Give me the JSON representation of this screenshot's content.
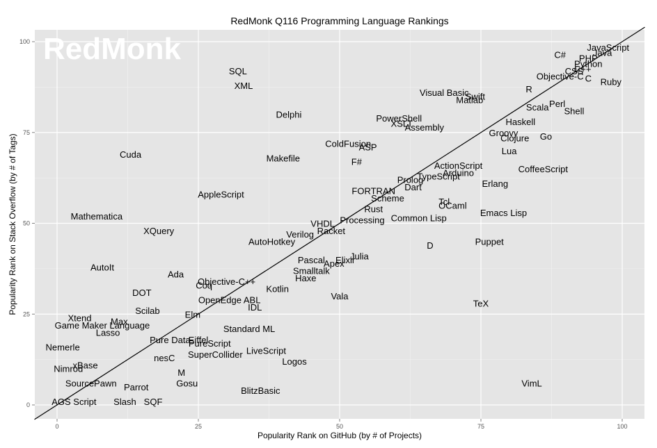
{
  "chart_data": {
    "type": "scatter",
    "title": "RedMonk Q116 Programming Language Rankings",
    "xlabel": "Popularity Rank on GitHub (by # of Projects)",
    "ylabel": "Popularity Rank on Stack Overflow (by # of Tags)",
    "xlim": [
      -4,
      104
    ],
    "ylim": [
      -4,
      105
    ],
    "xticks": [
      0,
      25,
      50,
      75,
      100
    ],
    "yticks": [
      0,
      25,
      50,
      75,
      100
    ],
    "grid": true,
    "legend": "none",
    "reference_line": "y = x",
    "watermark": "RedMonk",
    "points": [
      {
        "label": "JavaScript",
        "x": 97.5,
        "y": 98.5
      },
      {
        "label": "Java",
        "x": 96.5,
        "y": 97
      },
      {
        "label": "C#",
        "x": 89,
        "y": 96.5
      },
      {
        "label": "PHP",
        "x": 94,
        "y": 95.5
      },
      {
        "label": "Python",
        "x": 94,
        "y": 94
      },
      {
        "label": "C++",
        "x": 93,
        "y": 92.5
      },
      {
        "label": "CSS",
        "x": 91.5,
        "y": 92
      },
      {
        "label": "Objective-C",
        "x": 89,
        "y": 90.5
      },
      {
        "label": "C",
        "x": 94,
        "y": 90
      },
      {
        "label": "Ruby",
        "x": 98,
        "y": 89
      },
      {
        "label": "R",
        "x": 83.5,
        "y": 87
      },
      {
        "label": "Visual Basic",
        "x": 68.5,
        "y": 86
      },
      {
        "label": "Swift",
        "x": 74,
        "y": 85
      },
      {
        "label": "Matlab",
        "x": 73,
        "y": 84
      },
      {
        "label": "Perl",
        "x": 88.5,
        "y": 83
      },
      {
        "label": "Scala",
        "x": 85,
        "y": 82
      },
      {
        "label": "Shell",
        "x": 91.5,
        "y": 81
      },
      {
        "label": "SQL",
        "x": 32,
        "y": 92
      },
      {
        "label": "XML",
        "x": 33,
        "y": 88
      },
      {
        "label": "Delphi",
        "x": 41,
        "y": 80
      },
      {
        "label": "PowerShell",
        "x": 60.5,
        "y": 79
      },
      {
        "label": "XSLT",
        "x": 61,
        "y": 77.5
      },
      {
        "label": "Haskell",
        "x": 82,
        "y": 78
      },
      {
        "label": "Assembly",
        "x": 65,
        "y": 76.5
      },
      {
        "label": "Groovy",
        "x": 79,
        "y": 75
      },
      {
        "label": "Go",
        "x": 86.5,
        "y": 74
      },
      {
        "label": "Clojure",
        "x": 81,
        "y": 73.5
      },
      {
        "label": "ColdFusion",
        "x": 51.5,
        "y": 72
      },
      {
        "label": "ASP",
        "x": 55,
        "y": 71
      },
      {
        "label": "Lua",
        "x": 80,
        "y": 70
      },
      {
        "label": "Cuda",
        "x": 13,
        "y": 69
      },
      {
        "label": "Makefile",
        "x": 40,
        "y": 68
      },
      {
        "label": "F#",
        "x": 53,
        "y": 67
      },
      {
        "label": "ActionScript",
        "x": 71,
        "y": 66
      },
      {
        "label": "CoffeeScript",
        "x": 86,
        "y": 65
      },
      {
        "label": "Arduino",
        "x": 71,
        "y": 64
      },
      {
        "label": "TypeScript",
        "x": 67.5,
        "y": 63
      },
      {
        "label": "Prolog",
        "x": 62.5,
        "y": 62
      },
      {
        "label": "Erlang",
        "x": 77.5,
        "y": 61
      },
      {
        "label": "Dart",
        "x": 63,
        "y": 60
      },
      {
        "label": "FORTRAN",
        "x": 56,
        "y": 59
      },
      {
        "label": "AppleScript",
        "x": 29,
        "y": 58
      },
      {
        "label": "Scheme",
        "x": 58.5,
        "y": 57
      },
      {
        "label": "Tcl",
        "x": 68.5,
        "y": 56
      },
      {
        "label": "OCaml",
        "x": 70,
        "y": 55
      },
      {
        "label": "Rust",
        "x": 56,
        "y": 54
      },
      {
        "label": "Emacs Lisp",
        "x": 79,
        "y": 53
      },
      {
        "label": "Mathematica",
        "x": 7,
        "y": 52
      },
      {
        "label": "Common Lisp",
        "x": 64,
        "y": 51.5
      },
      {
        "label": "Processing",
        "x": 54,
        "y": 51
      },
      {
        "label": "VHDL",
        "x": 47,
        "y": 50
      },
      {
        "label": "XQuery",
        "x": 18,
        "y": 48
      },
      {
        "label": "Racket",
        "x": 48.5,
        "y": 48
      },
      {
        "label": "Verilog",
        "x": 43,
        "y": 47
      },
      {
        "label": "D",
        "x": 66,
        "y": 44
      },
      {
        "label": "Puppet",
        "x": 76.5,
        "y": 45
      },
      {
        "label": "AutoHotkey",
        "x": 38,
        "y": 45
      },
      {
        "label": "Julia",
        "x": 53.5,
        "y": 41
      },
      {
        "label": "Pascal",
        "x": 45,
        "y": 40
      },
      {
        "label": "Elixir",
        "x": 51,
        "y": 40
      },
      {
        "label": "Apex",
        "x": 49,
        "y": 39
      },
      {
        "label": "AutoIt",
        "x": 8,
        "y": 38
      },
      {
        "label": "Smalltalk",
        "x": 45,
        "y": 37
      },
      {
        "label": "Ada",
        "x": 21,
        "y": 36
      },
      {
        "label": "Haxe",
        "x": 44,
        "y": 35
      },
      {
        "label": "Objective-C++",
        "x": 30,
        "y": 34
      },
      {
        "label": "Coq",
        "x": 26,
        "y": 33
      },
      {
        "label": "Kotlin",
        "x": 39,
        "y": 32
      },
      {
        "label": "DOT",
        "x": 15,
        "y": 31
      },
      {
        "label": "Vala",
        "x": 50,
        "y": 30
      },
      {
        "label": "OpenEdge ABL",
        "x": 30.5,
        "y": 29
      },
      {
        "label": "TeX",
        "x": 75,
        "y": 28
      },
      {
        "label": "IDL",
        "x": 35,
        "y": 27
      },
      {
        "label": "Scilab",
        "x": 16,
        "y": 26
      },
      {
        "label": "Elm",
        "x": 24,
        "y": 25
      },
      {
        "label": "Xtend",
        "x": 4,
        "y": 24
      },
      {
        "label": "Max",
        "x": 11,
        "y": 23
      },
      {
        "label": "Game Maker Language",
        "x": 8,
        "y": 22
      },
      {
        "label": "Standard ML",
        "x": 34,
        "y": 21
      },
      {
        "label": "Lasso",
        "x": 9,
        "y": 20
      },
      {
        "label": "Pure Data",
        "x": 20,
        "y": 18
      },
      {
        "label": "Eiffel",
        "x": 25,
        "y": 18
      },
      {
        "label": "PureScript",
        "x": 27,
        "y": 17
      },
      {
        "label": "Nemerle",
        "x": 1,
        "y": 16
      },
      {
        "label": "LiveScript",
        "x": 37,
        "y": 15
      },
      {
        "label": "SuperCollider",
        "x": 28,
        "y": 14
      },
      {
        "label": "nesC",
        "x": 19,
        "y": 13
      },
      {
        "label": "Logos",
        "x": 42,
        "y": 12
      },
      {
        "label": "xBase",
        "x": 5,
        "y": 11
      },
      {
        "label": "Nimrod",
        "x": 2,
        "y": 10
      },
      {
        "label": "M",
        "x": 22,
        "y": 9
      },
      {
        "label": "SourcePawn",
        "x": 6,
        "y": 6
      },
      {
        "label": "Gosu",
        "x": 23,
        "y": 6
      },
      {
        "label": "VimL",
        "x": 84,
        "y": 6
      },
      {
        "label": "Parrot",
        "x": 14,
        "y": 5
      },
      {
        "label": "BlitzBasic",
        "x": 36,
        "y": 4
      },
      {
        "label": "AGS Script",
        "x": 3,
        "y": 1
      },
      {
        "label": "Slash",
        "x": 12,
        "y": 1
      },
      {
        "label": "SQF",
        "x": 17,
        "y": 1
      }
    ]
  }
}
